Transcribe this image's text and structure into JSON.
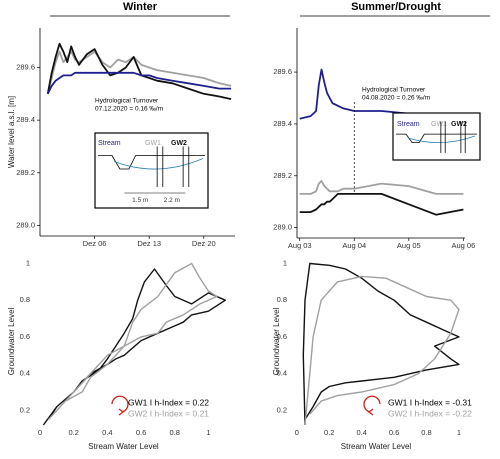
{
  "chart_data": [
    {
      "type": "line",
      "title": "Winter",
      "ylabel": "Water level a.s.l. [m]",
      "x": [
        0,
        0.5,
        1,
        1.5,
        2,
        2.5,
        3,
        3.5,
        4,
        5,
        6,
        7,
        8,
        9,
        10,
        11,
        12,
        13,
        14,
        16,
        18,
        20,
        22,
        23.5
      ],
      "xlim": [
        -1,
        24
      ],
      "xticks": [
        {
          "value": 6,
          "label": "Dez 06"
        },
        {
          "value": 13,
          "label": "Dez 13"
        },
        {
          "value": 20,
          "label": "Dez 20"
        }
      ],
      "ylim": [
        288.96,
        289.75
      ],
      "yticks": [
        {
          "value": 289,
          "label": "289.0"
        },
        {
          "value": 289.2,
          "label": "289.2"
        },
        {
          "value": 289.4,
          "label": "289.4"
        },
        {
          "value": 289.6,
          "label": "289.6"
        }
      ],
      "series": [
        {
          "name": "Stream",
          "color": "#1f1f8f",
          "values": [
            289.5,
            289.53,
            289.55,
            289.56,
            289.57,
            289.57,
            289.57,
            289.58,
            289.58,
            289.58,
            289.58,
            289.58,
            289.58,
            289.58,
            289.58,
            289.58,
            289.57,
            289.57,
            289.56,
            289.55,
            289.54,
            289.53,
            289.52,
            289.52
          ]
        },
        {
          "name": "GW1",
          "color": "#a0a0a0",
          "values": [
            289.5,
            289.56,
            289.62,
            289.66,
            289.62,
            289.64,
            289.66,
            289.63,
            289.62,
            289.64,
            289.66,
            289.62,
            289.6,
            289.63,
            289.62,
            289.64,
            289.61,
            289.6,
            289.59,
            289.58,
            289.57,
            289.56,
            289.54,
            289.53
          ]
        },
        {
          "name": "GW2",
          "color": "#111111",
          "values": [
            289.5,
            289.58,
            289.64,
            289.69,
            289.66,
            289.62,
            289.68,
            289.64,
            289.61,
            289.65,
            289.67,
            289.61,
            289.57,
            289.58,
            289.6,
            289.64,
            289.57,
            289.56,
            289.55,
            289.54,
            289.52,
            289.5,
            289.49,
            289.48
          ]
        }
      ],
      "annotation": {
        "lines": [
          "Hydrological Turnover",
          "07.12.2020 = 0.16 ‰/m"
        ]
      },
      "inset": {
        "distances": [
          "1.5 m",
          "2.2 m"
        ]
      }
    },
    {
      "type": "line",
      "title": "Summer/Drought",
      "x": [
        3.0,
        3.2,
        3.3,
        3.35,
        3.4,
        3.45,
        3.5,
        3.55,
        3.6,
        3.7,
        3.8,
        4.0,
        4.5,
        5.0,
        5.5,
        6.0
      ],
      "xlim": [
        2.95,
        6.03
      ],
      "xticks": [
        {
          "value": 3,
          "label": "Aug 03"
        },
        {
          "value": 4,
          "label": "Aug 04"
        },
        {
          "value": 5,
          "label": "Aug 05"
        },
        {
          "value": 6,
          "label": "Aug 06"
        }
      ],
      "ylim": [
        288.96,
        289.77
      ],
      "yticks": [
        {
          "value": 289,
          "label": "289.0"
        },
        {
          "value": 289.2,
          "label": "289.2"
        },
        {
          "value": 289.4,
          "label": "289.4"
        },
        {
          "value": 289.6,
          "label": "289.6"
        }
      ],
      "series": [
        {
          "name": "Stream",
          "color": "#1f1f8f",
          "values": [
            289.42,
            289.43,
            289.45,
            289.55,
            289.61,
            289.56,
            289.52,
            289.5,
            289.48,
            289.47,
            289.46,
            289.45,
            289.45,
            289.44,
            289.44,
            289.44
          ]
        },
        {
          "name": "GW1",
          "color": "#a0a0a0",
          "values": [
            289.13,
            289.13,
            289.14,
            289.17,
            289.18,
            289.16,
            289.15,
            289.14,
            289.14,
            289.14,
            289.15,
            289.15,
            289.17,
            289.16,
            289.13,
            289.13
          ]
        },
        {
          "name": "GW2",
          "color": "#111111",
          "values": [
            289.06,
            289.06,
            289.07,
            289.08,
            289.09,
            289.09,
            289.1,
            289.1,
            289.11,
            289.13,
            289.13,
            289.13,
            289.13,
            289.09,
            289.05,
            289.07
          ]
        }
      ],
      "annotation": {
        "lines": [
          "Hydrological Turnover",
          "04.08.2020 = 0.26 ‰/m"
        ],
        "x": 4
      },
      "inset": {}
    },
    {
      "type": "line",
      "xlabel": "Stream Water Level",
      "ylabel": "Groundwater Level",
      "xlim": [
        -0.03,
        1.14
      ],
      "ylim": [
        0.12,
        1.03
      ],
      "xticks": [
        0,
        0.2,
        0.4,
        0.6,
        0.8,
        1
      ],
      "yticks": [
        0.2,
        0.4,
        0.6,
        0.8,
        1
      ],
      "series": [
        {
          "name": "GW1 I h-Index = 0.22",
          "color": "#111111",
          "x": [
            0.02,
            0.1,
            0.2,
            0.25,
            0.35,
            0.4,
            0.45,
            0.5,
            0.55,
            0.58,
            0.62,
            0.68,
            0.75,
            0.8,
            0.9,
            1.0,
            1.1,
            1.0,
            0.9,
            0.85,
            0.8,
            0.7,
            0.6,
            0.5,
            0.45,
            0.4,
            0.3,
            0.25,
            0.2,
            0.1,
            0.05
          ],
          "values": [
            0.12,
            0.22,
            0.3,
            0.36,
            0.42,
            0.48,
            0.55,
            0.62,
            0.7,
            0.8,
            0.9,
            0.97,
            0.88,
            0.82,
            0.78,
            0.84,
            0.8,
            0.74,
            0.72,
            0.68,
            0.66,
            0.62,
            0.58,
            0.5,
            0.48,
            0.45,
            0.4,
            0.35,
            0.3,
            0.22,
            0.15
          ]
        },
        {
          "name": "GW2 I h-Index = 0.21",
          "color": "#a0a0a0",
          "x": [
            0.05,
            0.15,
            0.25,
            0.3,
            0.4,
            0.5,
            0.55,
            0.6,
            0.7,
            0.8,
            0.9,
            0.95,
            1.0,
            1.05,
            0.95,
            0.85,
            0.75,
            0.7,
            0.6,
            0.5,
            0.4,
            0.3,
            0.2,
            0.1
          ],
          "values": [
            0.15,
            0.25,
            0.3,
            0.38,
            0.45,
            0.55,
            0.68,
            0.75,
            0.82,
            0.95,
            1.0,
            0.92,
            0.85,
            0.82,
            0.78,
            0.72,
            0.68,
            0.62,
            0.6,
            0.55,
            0.5,
            0.4,
            0.3,
            0.2
          ]
        }
      ]
    },
    {
      "type": "line",
      "xlabel": "Stream Water Level",
      "ylabel": "Groundwater Level",
      "xlim": [
        -0.03,
        1.13
      ],
      "ylim": [
        0.12,
        1.03
      ],
      "xticks": [
        0,
        0.2,
        0.4,
        0.6,
        0.8,
        1
      ],
      "yticks": [
        0.2,
        0.4,
        0.6,
        0.8,
        1
      ],
      "series": [
        {
          "name": "GW1 I h-Index = -0.31",
          "color": "#111111",
          "x": [
            0.05,
            0.04,
            0.05,
            0.08,
            0.2,
            0.3,
            0.4,
            0.5,
            0.6,
            0.7,
            0.8,
            0.9,
            1.0,
            0.85,
            0.95,
            1.0,
            0.8,
            0.6,
            0.4,
            0.3,
            0.2,
            0.15,
            0.1,
            0.05
          ],
          "values": [
            0.12,
            0.5,
            0.8,
            1.0,
            0.99,
            0.97,
            0.92,
            0.85,
            0.8,
            0.72,
            0.68,
            0.64,
            0.6,
            0.55,
            0.48,
            0.45,
            0.42,
            0.38,
            0.36,
            0.35,
            0.33,
            0.3,
            0.22,
            0.15
          ]
        },
        {
          "name": "GW2 I h-Index = -0.22",
          "color": "#a0a0a0",
          "x": [
            0.05,
            0.08,
            0.1,
            0.15,
            0.25,
            0.4,
            0.55,
            0.7,
            0.8,
            0.95,
            1.0,
            0.95,
            0.85,
            0.75,
            0.6,
            0.4,
            0.25,
            0.15,
            0.08
          ],
          "values": [
            0.12,
            0.4,
            0.6,
            0.8,
            0.9,
            0.93,
            0.92,
            0.86,
            0.82,
            0.8,
            0.75,
            0.62,
            0.48,
            0.4,
            0.34,
            0.3,
            0.28,
            0.25,
            0.18
          ]
        }
      ]
    }
  ]
}
